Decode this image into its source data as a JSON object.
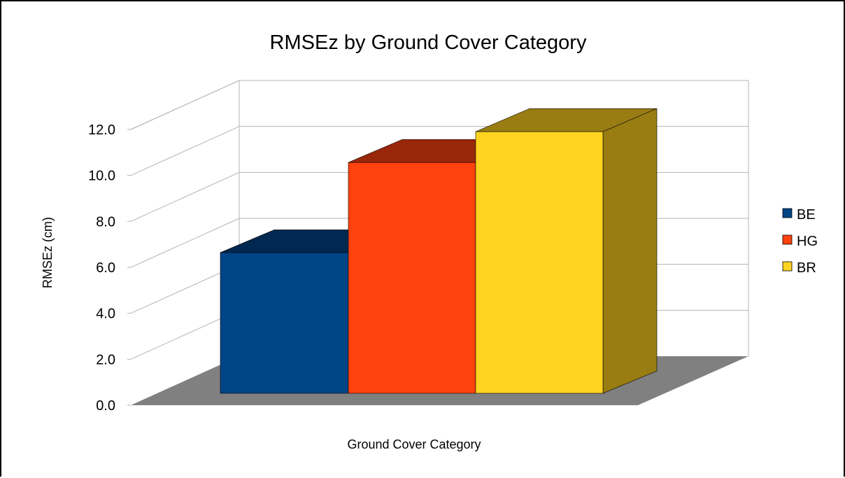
{
  "chart_data": {
    "type": "bar",
    "title": "RMSEz by Ground Cover Category",
    "xlabel": "Ground Cover Category",
    "ylabel": "RMSEz (cm)",
    "ylim": [
      0,
      12
    ],
    "yticks": [
      "0.0",
      "2.0",
      "4.0",
      "6.0",
      "8.0",
      "10.0",
      "12.0"
    ],
    "grid": true,
    "legend_position": "right",
    "style": "3d",
    "series": [
      {
        "name": "BE",
        "value": 6.4,
        "color": "#004586",
        "top_color": "#002850",
        "side_color": "#002850"
      },
      {
        "name": "HG",
        "value": 10.5,
        "color": "#ff420e",
        "top_color": "#99270a",
        "side_color": "#99270a"
      },
      {
        "name": "BR",
        "value": 11.9,
        "color": "#ffd320",
        "top_color": "#997d13",
        "side_color": "#997d13"
      }
    ],
    "floor_color": "#808080",
    "grid_color": "#b3b3b3"
  }
}
